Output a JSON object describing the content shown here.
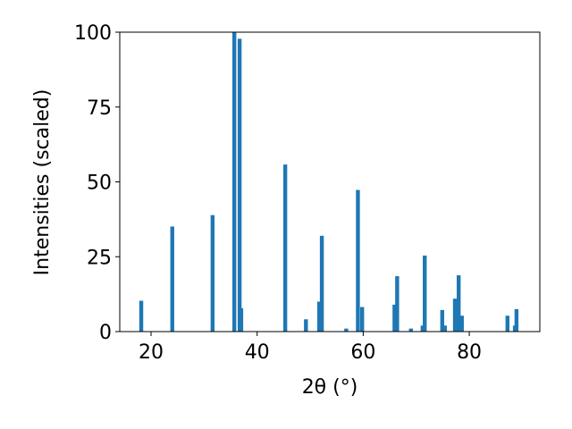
{
  "chart_data": {
    "type": "bar",
    "xlabel": "2θ (°)",
    "ylabel": "Intensities (scaled)",
    "x": [
      18.15,
      24.0,
      31.6,
      35.7,
      36.7,
      37.0,
      45.3,
      49.2,
      51.7,
      52.2,
      56.8,
      59.0,
      59.8,
      65.9,
      66.4,
      69.0,
      71.2,
      71.6,
      74.9,
      75.4,
      77.3,
      78.0,
      78.6,
      87.2,
      88.6,
      88.9
    ],
    "values": [
      10.3,
      35.1,
      38.9,
      100,
      97.8,
      7.8,
      55.8,
      4.1,
      10,
      32,
      1,
      47.3,
      8.2,
      9,
      18.5,
      1,
      2,
      25.4,
      7.2,
      2,
      11,
      18.8,
      5.3,
      5.3,
      2,
      7.5
    ],
    "color": "#1f77b4",
    "xlim": [
      14.1,
      93.3
    ],
    "xticks": [
      20,
      40,
      60,
      80
    ],
    "ylim": [
      0,
      100
    ],
    "yticks": [
      0,
      25,
      50,
      75,
      100
    ],
    "grid": false
  }
}
